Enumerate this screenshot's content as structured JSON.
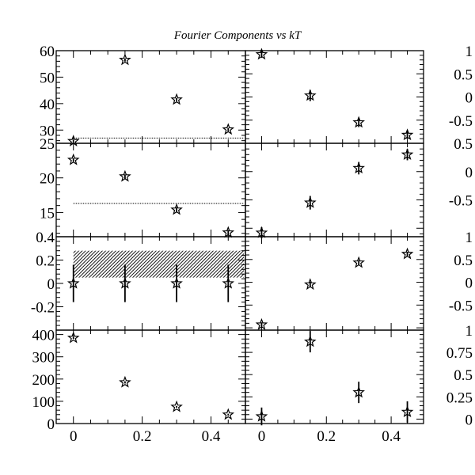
{
  "chart_data": {
    "type": "scatter",
    "title": "Fourier Components vs kT",
    "x_values": [
      0,
      0.15,
      0.3,
      0.45
    ],
    "x_tick_labels": [
      "0",
      "0.2",
      "0.4"
    ],
    "panels": [
      {
        "id": "top-left",
        "ylim": [
          25,
          60
        ],
        "y_ticks": [
          "60",
          "50",
          "40",
          "30"
        ],
        "values": [
          25.8,
          56.5,
          41.5,
          30.2
        ],
        "errors": [
          0.4,
          0.6,
          0.6,
          0.6
        ],
        "reference_line": 27
      },
      {
        "id": "top-right",
        "ylim": [
          -1,
          1
        ],
        "y_ticks": [
          "1",
          "0.5",
          "0",
          "-0.5"
        ],
        "values": [
          0.92,
          0.03,
          -0.55,
          -0.82
        ],
        "errors": [
          0.05,
          0.12,
          0.1,
          0.09
        ]
      },
      {
        "id": "second-left",
        "ylim": [
          11.5,
          25
        ],
        "y_ticks": [
          "25",
          "20",
          "15"
        ],
        "values": [
          22.6,
          20.2,
          15.4,
          12.1
        ],
        "errors": [
          0.25,
          0.3,
          0.35,
          0.35
        ],
        "reference_line": 16.3
      },
      {
        "id": "second-right",
        "ylim": [
          -1.15,
          0.5
        ],
        "y_ticks": [
          "0.5",
          "0",
          "-0.5"
        ],
        "values": [
          -1.08,
          -0.55,
          0.06,
          0.3
        ],
        "errors": [
          0.1,
          0.12,
          0.11,
          0.1
        ]
      },
      {
        "id": "third-left",
        "ylim": [
          -0.4,
          0.4
        ],
        "y_ticks": [
          "0.4",
          "0.2",
          "0",
          "-0.2"
        ],
        "values": [
          0,
          0,
          0,
          0
        ],
        "errors": [
          0.16,
          0.16,
          0.16,
          0.16
        ],
        "band": [
          0.05,
          0.28
        ]
      },
      {
        "id": "third-right",
        "ylim": [
          -1.05,
          1
        ],
        "y_ticks": [
          "1",
          "0.5",
          "0",
          "-0.5"
        ],
        "values": [
          -0.93,
          -0.05,
          0.43,
          0.62
        ],
        "errors": [
          0.05,
          0.06,
          0.05,
          0.05
        ]
      },
      {
        "id": "bottom-left",
        "ylim": [
          0,
          420
        ],
        "y_ticks": [
          "400",
          "300",
          "200",
          "100",
          "0"
        ],
        "values": [
          385,
          185,
          75,
          40
        ],
        "errors": [
          5,
          5,
          4,
          4
        ]
      },
      {
        "id": "bottom-right",
        "ylim": [
          -0.05,
          1
        ],
        "y_ticks": [
          "1",
          "0.75",
          "0.5",
          "0.25",
          "0"
        ],
        "values": [
          0.03,
          0.87,
          0.3,
          0.08
        ],
        "errors": [
          0.1,
          0.12,
          0.12,
          0.12
        ]
      }
    ],
    "xlim": [
      -0.05,
      0.5
    ]
  }
}
